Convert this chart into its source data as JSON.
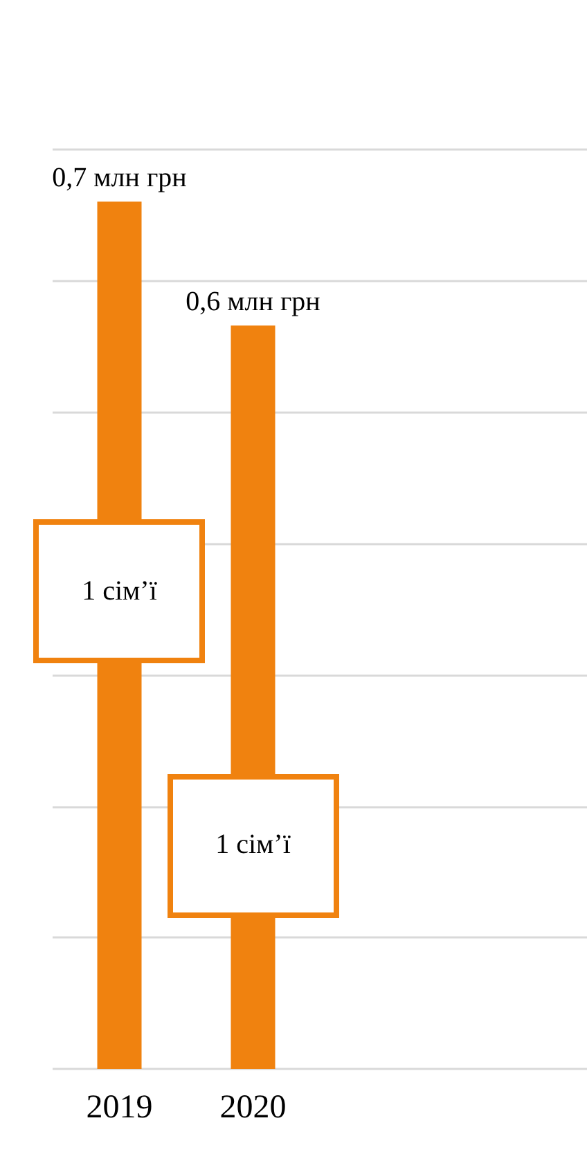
{
  "chart_data": {
    "type": "bar",
    "categories": [
      "2019",
      "2020"
    ],
    "values": [
      0.7,
      0.6
    ],
    "color": "#f0820f",
    "value_labels": [
      "0,7 млн грн",
      "0,6 млн грн"
    ],
    "annotations": [
      "1 сім’ї",
      "1 сім’ї"
    ],
    "tick_labels": "x",
    "grid": "y"
  }
}
